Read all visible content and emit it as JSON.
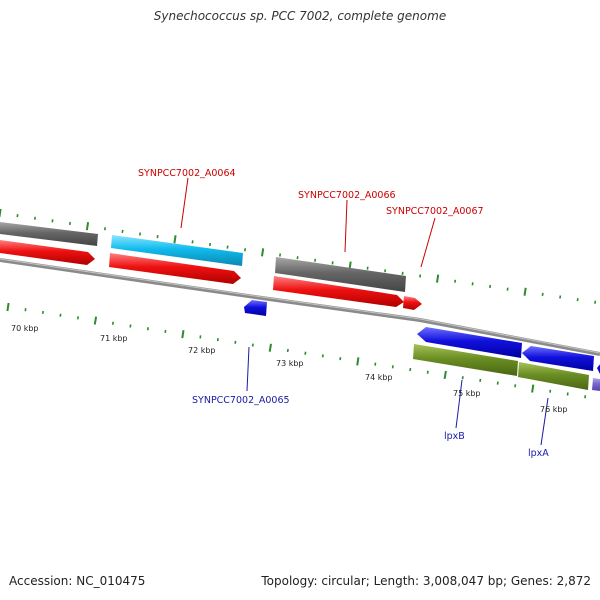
{
  "title": "Synechococcus sp. PCC 7002, complete genome",
  "footer": {
    "accession": "Accession: NC_010475",
    "topology": "Topology: circular; Length: 3,008,047 bp; Genes: 2,872"
  },
  "axis": {
    "ticks": [
      "70 kbp",
      "71 kbp",
      "72 kbp",
      "73 kbp",
      "74 kbp",
      "75 kbp",
      "76 kbp"
    ]
  },
  "gene_labels": {
    "a0064": "SYNPCC7002_A0064",
    "a0066": "SYNPCC7002_A0066",
    "a0067": "SYNPCC7002_A0067",
    "a0065": "SYNPCC7002_A0065",
    "lpxb": "lpxB",
    "lpxa": "lpxA"
  },
  "colors": {
    "cds_red": "#ee1111",
    "cds_grey": "#666666",
    "cds_cyan": "#11bbee",
    "cds_blue": "#1111dd",
    "cds_green": "#6b8e23",
    "cds_purple": "#7766cc",
    "backbone": "#8a8a8a",
    "ticks": "#2e8b2e",
    "label_forward": "#cc0000",
    "label_reverse": "#1a1aa6"
  }
}
